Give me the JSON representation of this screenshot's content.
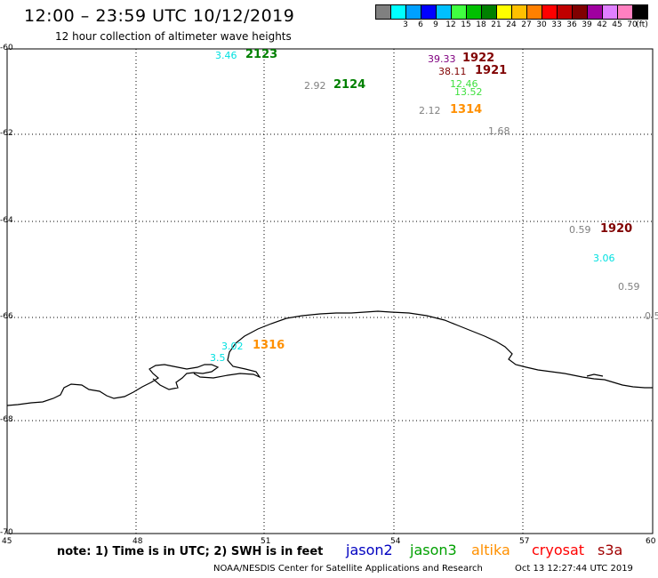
{
  "header": {
    "title": "12:00 – 23:59 UTC 10/12/2019",
    "subtitle": "12 hour collection of altimeter wave heights"
  },
  "legend": {
    "swatches": [
      {
        "color": "#808080",
        "label": ""
      },
      {
        "color": "#00ffff",
        "label": "3"
      },
      {
        "color": "#00a0ff",
        "label": "6"
      },
      {
        "color": "#0000ff",
        "label": "9"
      },
      {
        "color": "#00c0ff",
        "label": "12"
      },
      {
        "color": "#40ff40",
        "label": "15"
      },
      {
        "color": "#00c000",
        "label": "18"
      },
      {
        "color": "#008000",
        "label": "21"
      },
      {
        "color": "#ffff00",
        "label": "24"
      },
      {
        "color": "#ffc000",
        "label": "27"
      },
      {
        "color": "#ff8000",
        "label": "30"
      },
      {
        "color": "#ff0000",
        "label": "33"
      },
      {
        "color": "#c00000",
        "label": "36"
      },
      {
        "color": "#800000",
        "label": "39"
      },
      {
        "color": "#a000a0",
        "label": "42"
      },
      {
        "color": "#e080ff",
        "label": "45"
      },
      {
        "color": "#ff80c0",
        "label": "70"
      },
      {
        "color": "#000000",
        "label": "(ft)"
      }
    ]
  },
  "axes": {
    "lat_labels": [
      "-60",
      "-62",
      "-64",
      "-66",
      "-68",
      "-70"
    ],
    "lon_labels": [
      "45",
      "48",
      "51",
      "54",
      "57",
      "60"
    ]
  },
  "observations": [
    {
      "text": "3.46",
      "color": "#00e0e0"
    },
    {
      "text": "2123",
      "color": "#008000",
      "bold": true
    },
    {
      "text": "2.92",
      "color": "#808080"
    },
    {
      "text": "2124",
      "color": "#008000",
      "bold": true
    },
    {
      "text": "39.33",
      "color": "#800080"
    },
    {
      "text": "1922",
      "color": "#800000",
      "bold": true
    },
    {
      "text": "38.11",
      "color": "#800000"
    },
    {
      "text": "1921",
      "color": "#800000",
      "bold": true
    },
    {
      "text": "12.46",
      "color": "#40e040"
    },
    {
      "text": "13.52",
      "color": "#40e040"
    },
    {
      "text": "2.12",
      "color": "#808080"
    },
    {
      "text": "1314",
      "color": "#ff9000",
      "bold": true
    },
    {
      "text": "1.68",
      "color": "#808080"
    },
    {
      "text": "0.59",
      "color": "#808080"
    },
    {
      "text": "1920",
      "color": "#800000",
      "bold": true
    },
    {
      "text": "3.06",
      "color": "#00e0e0"
    },
    {
      "text": "0.59",
      "color": "#808080"
    },
    {
      "text": "0.5",
      "color": "#808080"
    },
    {
      "text": "3.02",
      "color": "#00e0e0"
    },
    {
      "text": "1316",
      "color": "#ff9000",
      "bold": true
    },
    {
      "text": "3.5",
      "color": "#00e0e0"
    }
  ],
  "footer": {
    "note": "note: 1) Time is in UTC; 2) SWH is in feet",
    "satellites": [
      {
        "name": "jason2",
        "color": "#0000c0"
      },
      {
        "name": "jason3",
        "color": "#00a000"
      },
      {
        "name": "altika",
        "color": "#ff9000"
      },
      {
        "name": "cryosat",
        "color": "#ff0000"
      },
      {
        "name": "s3a",
        "color": "#a00000"
      }
    ],
    "credit": "NOAA/NESDIS Center for Satellite Applications and Research",
    "timestamp": "Oct 13 12:27:44 UTC 2019"
  }
}
